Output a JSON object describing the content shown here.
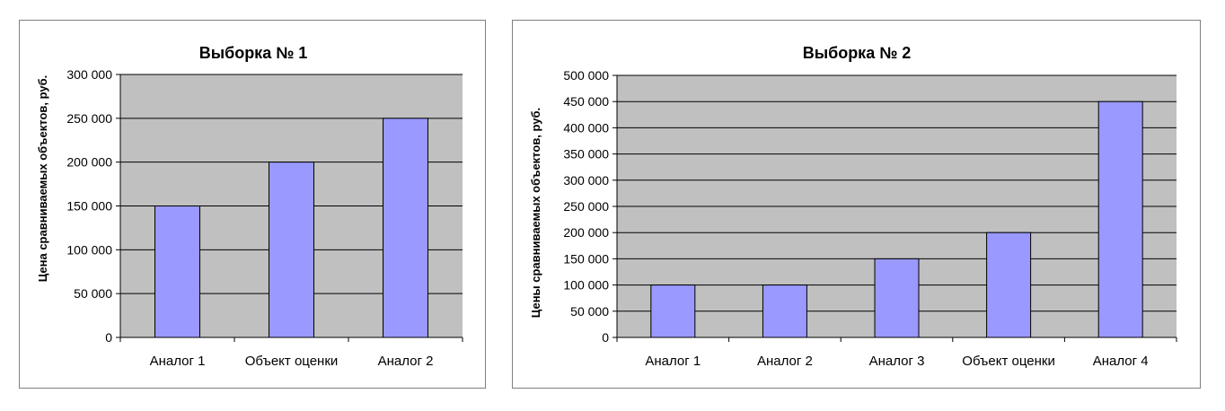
{
  "chart_data": [
    {
      "type": "bar",
      "title": "Выборка № 1",
      "xlabel": "",
      "ylabel": "Цена сравниваемых объектов, руб.",
      "categories": [
        "Аналог 1",
        "Объект оценки",
        "Аналог 2"
      ],
      "values": [
        150000,
        200000,
        250000
      ],
      "ylim": [
        0,
        300000
      ],
      "yticks": [
        0,
        50000,
        100000,
        150000,
        200000,
        250000,
        300000
      ],
      "ytick_labels": [
        "0",
        "50 000",
        "100 000",
        "150 000",
        "200 000",
        "250 000",
        "300 000"
      ],
      "grid": true,
      "legend": "none"
    },
    {
      "type": "bar",
      "title": "Выборка № 2",
      "xlabel": "",
      "ylabel": "Цены сравниваемых объектов, руб.",
      "categories": [
        "Аналог 1",
        "Аналог 2",
        "Аналог 3",
        "Объект оценки",
        "Аналог 4"
      ],
      "values": [
        100000,
        100000,
        150000,
        200000,
        450000
      ],
      "ylim": [
        0,
        500000
      ],
      "yticks": [
        0,
        50000,
        100000,
        150000,
        200000,
        250000,
        300000,
        350000,
        400000,
        450000,
        500000
      ],
      "ytick_labels": [
        "0",
        "50 000",
        "100 000",
        "150 000",
        "200 000",
        "250 000",
        "300 000",
        "350 000",
        "400 000",
        "450 000",
        "500 000"
      ],
      "grid": true,
      "legend": "none"
    }
  ],
  "colors": {
    "plot_background": "#c0c0c0",
    "bar_fill": "#9999ff",
    "bar_stroke": "#000000",
    "grid_line": "#000000"
  }
}
